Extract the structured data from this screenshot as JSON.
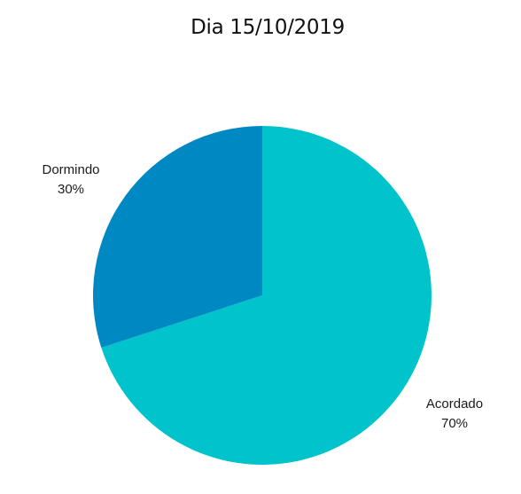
{
  "chart_data": {
    "type": "pie",
    "title": "Dia 15/10/2019",
    "categories": [
      "Acordado",
      "Dormindo"
    ],
    "values": [
      70,
      30
    ],
    "value_labels": [
      "70%",
      "30%"
    ],
    "colors": [
      "#00c3cc",
      "#0088c2"
    ],
    "start_angle_deg": 0,
    "direction": "clockwise",
    "legend": "none"
  }
}
